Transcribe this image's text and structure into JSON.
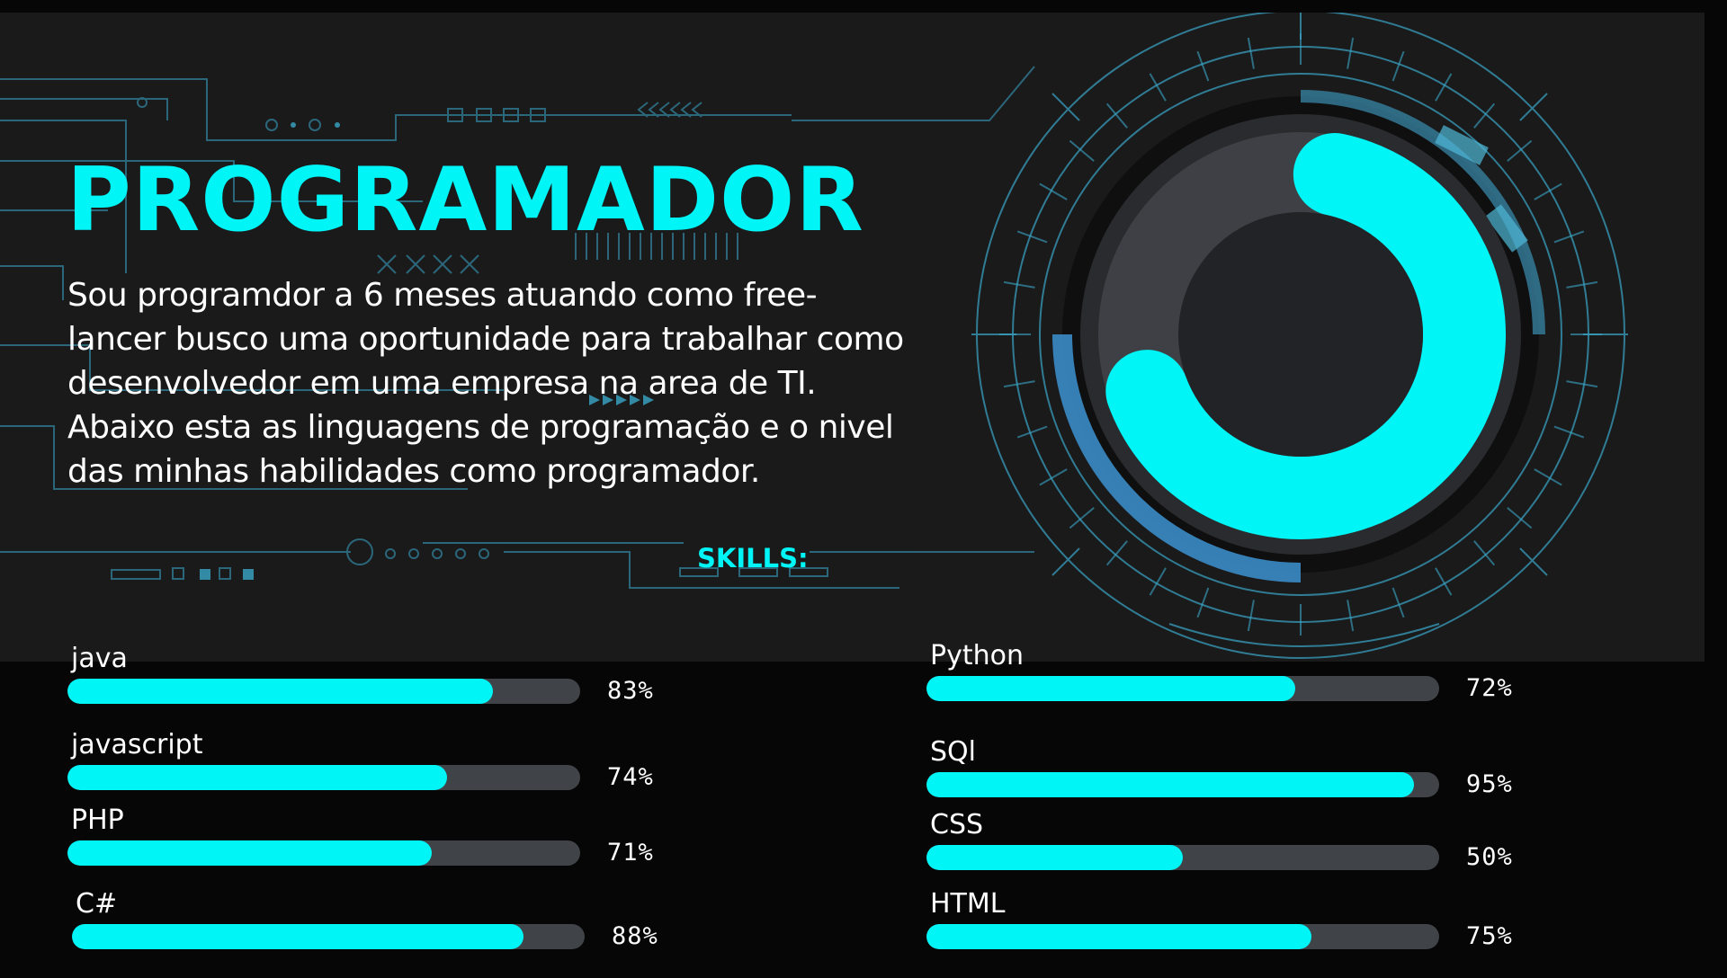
{
  "title": "PROGRAMADOR",
  "description": "Sou programdor a 6 meses atuando como free-lancer busco uma oportunidade para trabalhar como desenvolvedor em uma empresa na area de TI. Abaixo esta as linguagens de programação e o nivel das minhas habilidades como programador.",
  "skills_label": "SKILLS:",
  "gauge_icon": "circular-progress-icon",
  "colors": {
    "accent": "#00f5f6",
    "track": "#404347",
    "panel": "#1a1a1b",
    "page": "#060606",
    "circuit": "#3aa6c8"
  },
  "skills_left": [
    {
      "name": "java",
      "percent_label": "83%",
      "level": 0.83
    },
    {
      "name": "javascript",
      "percent_label": "74%",
      "level": 0.74
    },
    {
      "name": "PHP",
      "percent_label": "71%",
      "level": 0.71
    },
    {
      "name": "C#",
      "percent_label": "88%",
      "level": 0.88
    }
  ],
  "skills_right": [
    {
      "name": "Python",
      "percent_label": "72%",
      "level": 0.72
    },
    {
      "name": "SQl",
      "percent_label": "95%",
      "level": 0.95
    },
    {
      "name": "CSS",
      "percent_label": "50%",
      "level": 0.5
    },
    {
      "name": "HTML",
      "percent_label": "75%",
      "level": 0.75
    }
  ]
}
